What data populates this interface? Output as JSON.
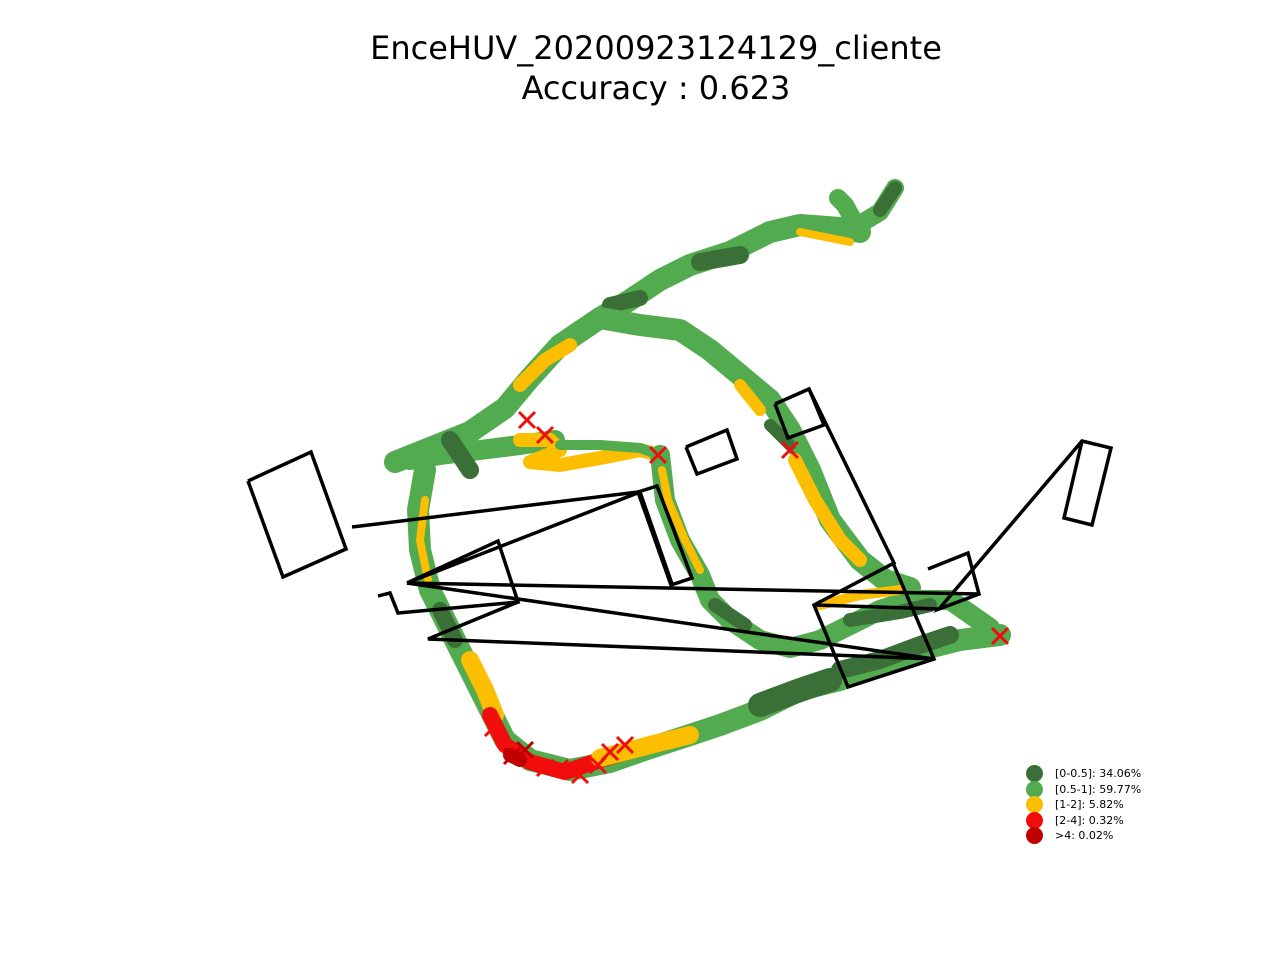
{
  "chart_data": {
    "type": "scatter",
    "title_line1": "EnceHUV_20200923124129_cliente",
    "title_line2": "Accuracy : 0.623",
    "legend_position": "lower-right",
    "legend": [
      {
        "label": "[0-0.5]: 34.06%",
        "color": "#3a7038"
      },
      {
        "label": "[0.5-1]: 59.77%",
        "color": "#53ab50"
      },
      {
        "label": "[1-2]: 5.82%",
        "color": "#fbbe00"
      },
      {
        "label": "[2-4]: 0.32%",
        "color": "#f20d0d"
      },
      {
        "label": ">4: 0.02%",
        "color": "#c00000"
      }
    ],
    "colors": {
      "dark_green": "#3a7038",
      "green": "#53ab50",
      "yellow": "#fbbe00",
      "red": "#f20d0d",
      "dark_red": "#c00000",
      "outline": "#000000"
    }
  }
}
